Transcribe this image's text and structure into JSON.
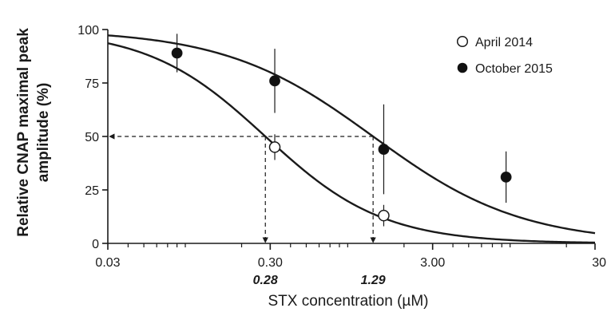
{
  "chart_data": {
    "type": "scatter",
    "xscale": "log",
    "xlim": [
      0.03,
      30
    ],
    "ylim": [
      0,
      100
    ],
    "xlabel": "STX concentration (µM)",
    "ylabel_line1": "Relative CNAP maximal peak",
    "ylabel_line2": "amplitude (%)",
    "xticks": [
      {
        "value": 0.03,
        "label": "0.03"
      },
      {
        "value": 0.3,
        "label": "0.30"
      },
      {
        "value": 3,
        "label": "3.00"
      },
      {
        "value": 30,
        "label": "30"
      }
    ],
    "yticks": [
      {
        "value": 0,
        "label": "0"
      },
      {
        "value": 25,
        "label": "25"
      },
      {
        "value": 50,
        "label": "50"
      },
      {
        "value": 75,
        "label": "75"
      },
      {
        "value": 100,
        "label": "100"
      }
    ],
    "grid": false,
    "legend_position": "top-right",
    "series": [
      {
        "name": "April 2014",
        "marker": "open-circle",
        "ic50": 0.28,
        "hill": 1.2,
        "points": [
          {
            "x": 0.32,
            "y": 45,
            "err": 6
          },
          {
            "x": 1.5,
            "y": 13,
            "err": 5
          }
        ]
      },
      {
        "name": "October 2015",
        "marker": "filled-circle",
        "ic50": 1.29,
        "hill": 0.95,
        "points": [
          {
            "x": 0.08,
            "y": 89,
            "err": 9
          },
          {
            "x": 0.32,
            "y": 76,
            "err": 15
          },
          {
            "x": 1.5,
            "y": 44,
            "err": 21
          },
          {
            "x": 8.5,
            "y": 31,
            "err": 12
          }
        ]
      }
    ],
    "annotations": [
      {
        "label": "0.28",
        "x": 0.28,
        "y": 50
      },
      {
        "label": "1.29",
        "x": 1.29,
        "y": 50
      }
    ]
  }
}
